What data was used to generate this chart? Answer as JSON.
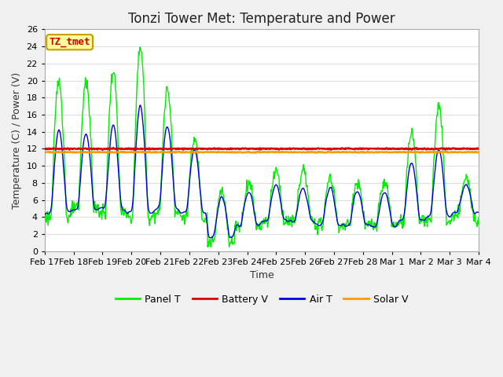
{
  "title": "Tonzi Tower Met: Temperature and Power",
  "xlabel": "Time",
  "ylabel": "Temperature (C) / Power (V)",
  "ylim": [
    0,
    26
  ],
  "yticks": [
    0,
    2,
    4,
    6,
    8,
    10,
    12,
    14,
    16,
    18,
    20,
    22,
    24,
    26
  ],
  "xtick_labels": [
    "Feb 17",
    "Feb 18",
    "Feb 19",
    "Feb 20",
    "Feb 21",
    "Feb 22",
    "Feb 23",
    "Feb 24",
    "Feb 25",
    "Feb 26",
    "Feb 27",
    "Feb 28",
    "Mar 1",
    "Mar 2",
    "Mar 3",
    "Mar 4"
  ],
  "annotation_text": "TZ_tmet",
  "annotation_color": "#cc0000",
  "annotation_bg": "#ffff99",
  "annotation_border": "#cc9900",
  "line_colors": {
    "panel": "#00ee00",
    "battery": "#dd0000",
    "air": "#0000dd",
    "solar": "#ff9900"
  },
  "legend_labels": [
    "Panel T",
    "Battery V",
    "Air T",
    "Solar V"
  ],
  "figure_bg": "#f0f0f0",
  "plot_bg": "#ffffff",
  "grid_color": "#dddddd",
  "title_fontsize": 12,
  "axis_fontsize": 9,
  "tick_fontsize": 8,
  "battery_level": 12.0,
  "solar_level": 11.6
}
